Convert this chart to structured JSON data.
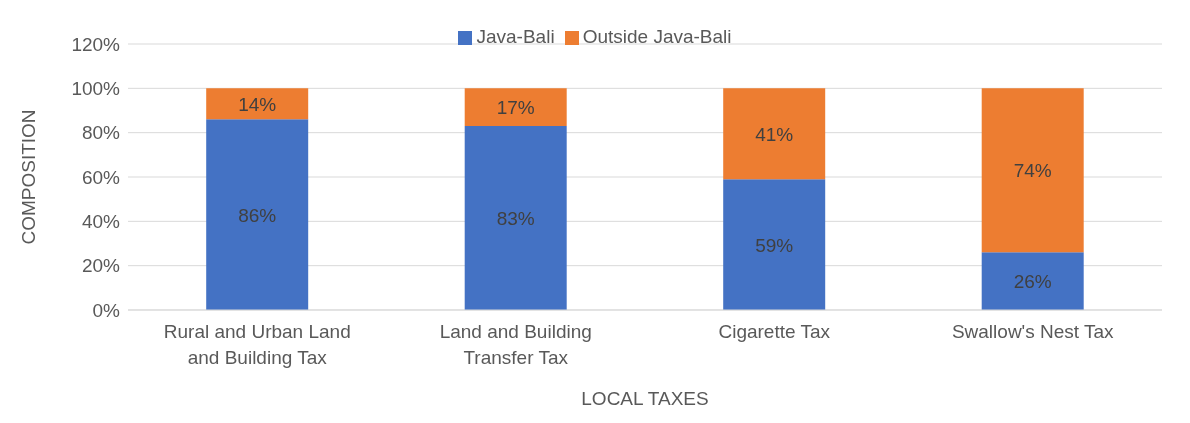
{
  "chart_data": {
    "type": "bar",
    "stacked": true,
    "xlabel": "LOCAL TAXES",
    "ylabel": "COMPOSITION",
    "categories": [
      "Rural and Urban Land and Building Tax",
      "Land and Building Transfer Tax",
      "Cigarette Tax",
      "Swallow's Nest Tax"
    ],
    "series": [
      {
        "name": "Java-Bali",
        "color": "#4472c4",
        "values": [
          86,
          83,
          59,
          26
        ],
        "value_labels": [
          "86%",
          "83%",
          "59%",
          "26%"
        ]
      },
      {
        "name": "Outside Java-Bali",
        "color": "#ed7d31",
        "values": [
          14,
          17,
          41,
          74
        ],
        "value_labels": [
          "14%",
          "17%",
          "41%",
          "74%"
        ]
      }
    ],
    "ylim": [
      0,
      120
    ],
    "yticks": [
      {
        "value": 0,
        "label": "0%"
      },
      {
        "value": 20,
        "label": "20%"
      },
      {
        "value": 40,
        "label": "40%"
      },
      {
        "value": 60,
        "label": "60%"
      },
      {
        "value": 80,
        "label": "80%"
      },
      {
        "value": 100,
        "label": "100%"
      },
      {
        "value": 120,
        "label": "120%"
      }
    ],
    "grid": "y",
    "legend": "top"
  }
}
